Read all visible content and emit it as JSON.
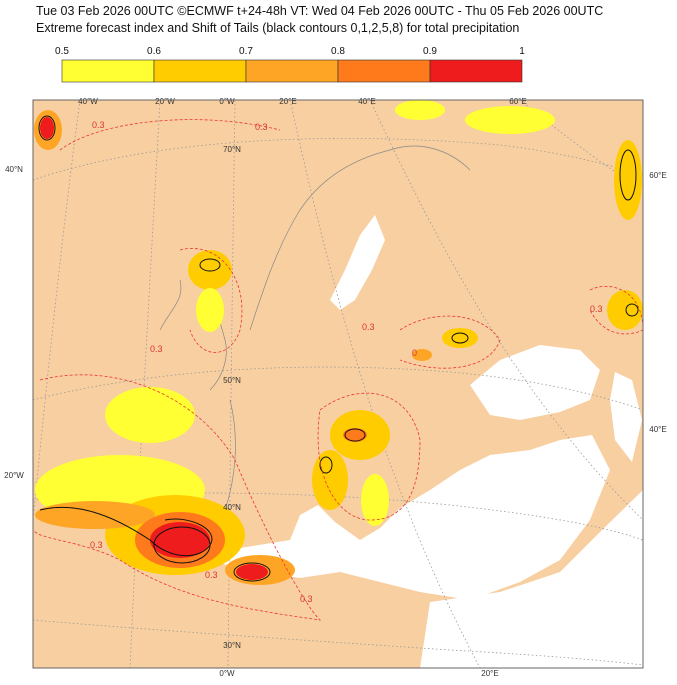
{
  "header": {
    "title": "Tue 03 Feb 2026 00UTC ©ECMWF t+24-48h  VT: Wed 04 Feb 2026 00UTC - Thu 05 Feb 2026 00UTC",
    "subtitle": "Extreme forecast index and Shift of Tails (black contours 0,1,2,5,8) for total precipitation"
  },
  "colorbar": {
    "ticks": [
      0.5,
      0.6,
      0.7,
      0.8,
      0.9,
      1
    ],
    "colors": [
      "#ffff33",
      "#ffcc00",
      "#ffa526",
      "#ff7a1a",
      "#ee1c1c"
    ]
  },
  "graticule_labels": [
    "40°W",
    "20°W",
    "0°W",
    "20°E",
    "40°E",
    "60°E",
    "40°N",
    "70°N",
    "60°E",
    "50°N",
    "20°W",
    "40°N",
    "40°E",
    "30°N",
    "0°W",
    "20°E"
  ],
  "contour_labels": [
    "0.3",
    "0.3",
    "0.3",
    "0.3",
    "0.3",
    "0.3",
    "0.3",
    "0.3",
    "0"
  ]
}
